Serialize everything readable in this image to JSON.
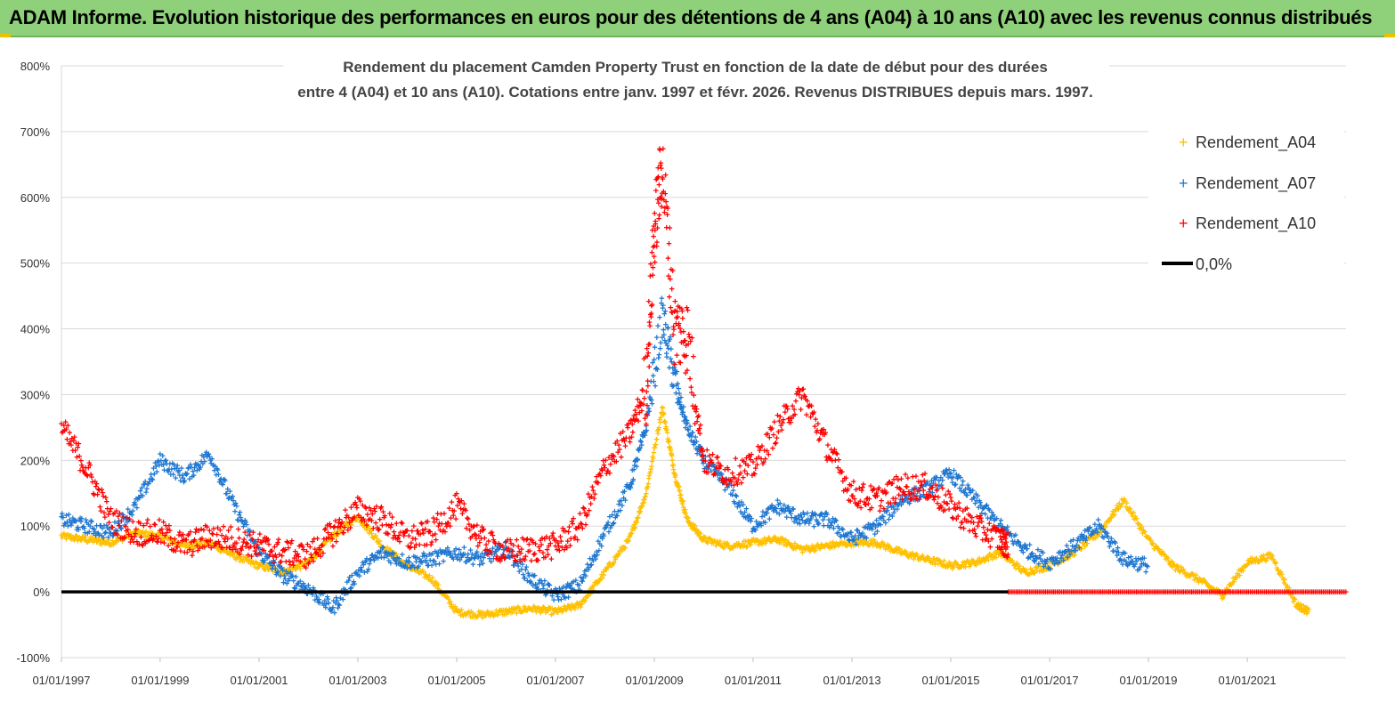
{
  "banner": {
    "title": "ADAM Informe. Evolution historique des performances en euros pour des détentions de 4 ans (A04) à 10 ans (A10) avec les revenus connus distribués"
  },
  "colors": {
    "banner_bg": "#8fd07a",
    "A04": "#ffc000",
    "A07": "#1f77d0",
    "A10": "#ff0000",
    "zero_line": "#000000"
  },
  "chart_data": {
    "type": "scatter",
    "title_line1": "Rendement du placement Camden Property Trust en fonction de la date de début pour des durées",
    "title_line2": "entre 4 (A04) et 10 ans (A10). Cotations entre janv. 1997 et févr. 2026. Revenus DISTRIBUES depuis mars. 1997.",
    "y_ticks": [
      "800%",
      "700%",
      "600%",
      "500%",
      "400%",
      "300%",
      "200%",
      "100%",
      "0%",
      "-100%"
    ],
    "ylim": [
      -100,
      800
    ],
    "x_tick_labels": [
      "01/01/1997",
      "01/01/1999",
      "01/01/2001",
      "01/01/2003",
      "01/01/2005",
      "01/01/2007",
      "01/01/2009",
      "01/01/2011",
      "01/01/2013",
      "01/01/2015",
      "01/01/2017",
      "01/01/2019",
      "01/01/2021"
    ],
    "xlim": [
      "1997-01-01",
      "2023-01-01"
    ],
    "grid": "horizontal",
    "legend_position": "top-right",
    "legend": [
      "Rendement_A04",
      "Rendement_A07",
      "Rendement_A10",
      "0,0%"
    ],
    "series": [
      {
        "name": "Rendement_A04",
        "x": [
          "1997-01",
          "1997-07",
          "1998-01",
          "1998-07",
          "1999-01",
          "1999-07",
          "2000-01",
          "2000-07",
          "2001-01",
          "2001-07",
          "2002-01",
          "2002-07",
          "2003-01",
          "2003-07",
          "2004-01",
          "2004-07",
          "2005-01",
          "2005-07",
          "2006-01",
          "2006-07",
          "2007-01",
          "2007-07",
          "2008-01",
          "2008-07",
          "2008-11",
          "2009-03",
          "2009-06",
          "2009-09",
          "2010-01",
          "2010-07",
          "2011-01",
          "2011-07",
          "2012-01",
          "2012-07",
          "2013-01",
          "2013-07",
          "2014-01",
          "2014-07",
          "2015-01",
          "2015-07",
          "2016-01",
          "2016-07",
          "2017-01",
          "2017-07",
          "2018-01",
          "2018-07",
          "2019-01",
          "2019-07",
          "2020-01",
          "2020-07",
          "2021-01",
          "2021-07",
          "2022-01",
          "2022-04"
        ],
        "y": [
          85,
          80,
          75,
          90,
          85,
          70,
          75,
          55,
          40,
          30,
          45,
          85,
          115,
          70,
          40,
          20,
          -30,
          -35,
          -30,
          -25,
          -30,
          -20,
          30,
          80,
          150,
          280,
          180,
          110,
          80,
          70,
          75,
          80,
          65,
          70,
          75,
          75,
          60,
          50,
          40,
          45,
          60,
          30,
          40,
          60,
          90,
          140,
          80,
          40,
          20,
          -5,
          45,
          55,
          -20,
          -30
        ]
      },
      {
        "name": "Rendement_A07",
        "x": [
          "1997-01",
          "1997-07",
          "1998-01",
          "1998-07",
          "1999-01",
          "1999-07",
          "2000-01",
          "2000-07",
          "2001-01",
          "2001-07",
          "2002-01",
          "2002-07",
          "2003-01",
          "2003-07",
          "2004-01",
          "2004-07",
          "2005-01",
          "2005-07",
          "2006-01",
          "2006-07",
          "2007-01",
          "2007-07",
          "2008-01",
          "2008-07",
          "2008-11",
          "2009-03",
          "2009-06",
          "2009-09",
          "2010-01",
          "2010-07",
          "2011-01",
          "2011-07",
          "2012-01",
          "2012-07",
          "2013-01",
          "2013-07",
          "2014-01",
          "2014-07",
          "2015-01",
          "2015-07",
          "2016-01",
          "2016-07",
          "2017-01",
          "2017-07",
          "2018-01",
          "2018-07",
          "2019-01"
        ],
        "y": [
          110,
          100,
          90,
          130,
          200,
          175,
          210,
          130,
          60,
          25,
          5,
          -25,
          30,
          60,
          45,
          50,
          60,
          50,
          65,
          20,
          -5,
          10,
          90,
          160,
          250,
          420,
          320,
          250,
          200,
          160,
          100,
          130,
          110,
          110,
          80,
          100,
          140,
          155,
          180,
          140,
          100,
          65,
          45,
          70,
          100,
          50,
          40
        ]
      },
      {
        "name": "Rendement_A10",
        "x": [
          "1997-01",
          "1997-07",
          "1998-01",
          "1998-07",
          "1999-01",
          "1999-07",
          "2000-01",
          "2000-07",
          "2001-01",
          "2001-07",
          "2002-01",
          "2002-07",
          "2003-01",
          "2003-07",
          "2004-01",
          "2004-07",
          "2005-01",
          "2005-07",
          "2006-01",
          "2006-07",
          "2007-01",
          "2007-07",
          "2008-01",
          "2008-07",
          "2008-11",
          "2009-01",
          "2009-03",
          "2009-06",
          "2009-09",
          "2010-01",
          "2010-07",
          "2011-01",
          "2011-07",
          "2012-01",
          "2012-07",
          "2013-01",
          "2013-07",
          "2014-01",
          "2014-07",
          "2015-01",
          "2015-07",
          "2016-01",
          "2016-03"
        ],
        "y": [
          250,
          190,
          110,
          90,
          90,
          70,
          85,
          80,
          70,
          60,
          55,
          90,
          125,
          110,
          80,
          90,
          130,
          80,
          60,
          65,
          70,
          100,
          190,
          240,
          310,
          550,
          650,
          400,
          390,
          200,
          180,
          190,
          250,
          300,
          220,
          150,
          140,
          160,
          160,
          130,
          100,
          80,
          70
        ]
      },
      {
        "name": "0,0%",
        "x": [
          "1997-01-01",
          "2023-01-01"
        ],
        "y": [
          0,
          0
        ]
      }
    ]
  }
}
